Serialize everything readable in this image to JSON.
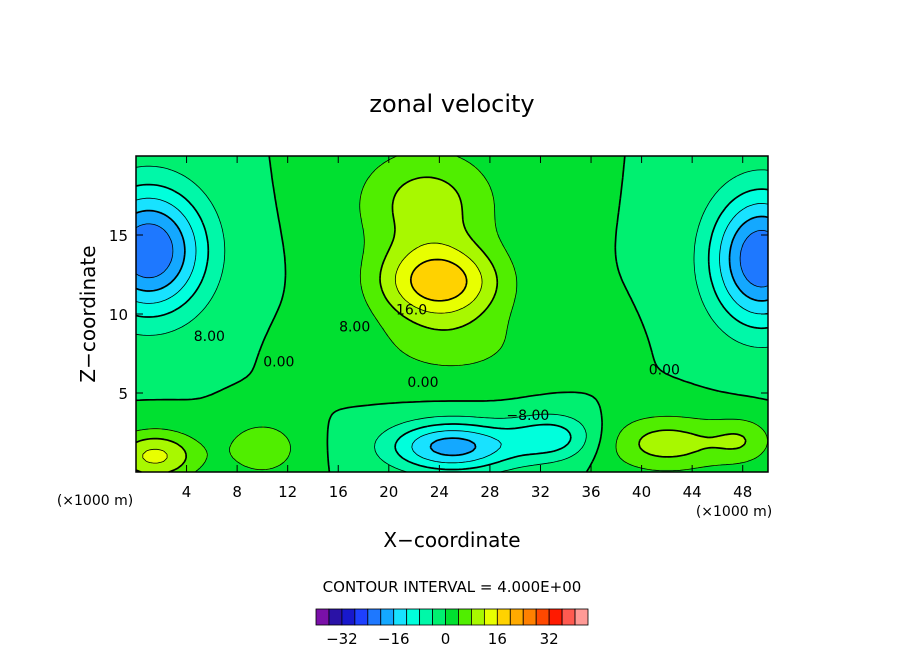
{
  "chart_data": {
    "type": "heatmap",
    "title": "zonal velocity",
    "xlabel": "X−coordinate",
    "ylabel": "Z−coordinate",
    "x_unit_label": "(×1000 m)",
    "z_unit_label": "(×1000 m)",
    "xlim": [
      0,
      50
    ],
    "ylim": [
      0,
      20
    ],
    "x_ticks": [
      4,
      8,
      12,
      16,
      20,
      24,
      28,
      32,
      36,
      40,
      44,
      48
    ],
    "y_ticks": [
      5,
      10,
      15
    ],
    "contour_interval_text": "CONTOUR INTERVAL = 4.000E+00",
    "contour_labels": [
      {
        "text": "16.0",
        "x": 21.8,
        "z": 10.3
      },
      {
        "text": "8.00",
        "x": 17.3,
        "z": 9.2
      },
      {
        "text": "8.00",
        "x": 5.8,
        "z": 8.6
      },
      {
        "text": "0.00",
        "x": 11.3,
        "z": 7.0
      },
      {
        "text": "0.00",
        "x": 22.7,
        "z": 5.7
      },
      {
        "text": "0.00",
        "x": 41.8,
        "z": 6.5
      },
      {
        "text": "−8.00",
        "x": 31.0,
        "z": 3.6
      }
    ],
    "colorbar": {
      "levels": [
        -36,
        -32,
        -28,
        -24,
        -20,
        -16,
        -12,
        -8,
        -4,
        0,
        4,
        8,
        12,
        16,
        20,
        24,
        28,
        32,
        36
      ],
      "colors": [
        "#7a10a8",
        "#2a12a6",
        "#1818cc",
        "#1e40ff",
        "#1e78ff",
        "#14a8ff",
        "#18e2ff",
        "#00ffdc",
        "#00f8a8",
        "#00f070",
        "#00e030",
        "#50ee00",
        "#a8f800",
        "#e8ff00",
        "#ffd200",
        "#ffaa00",
        "#ff8000",
        "#ff4800",
        "#ff1a00",
        "#ff5a50",
        "#ff9a96"
      ],
      "tick_labels": [
        "−32",
        "−16",
        "0",
        "16",
        "32"
      ],
      "tick_values": [
        -32,
        -16,
        0,
        16,
        32
      ]
    },
    "centers": [
      {
        "x": 24,
        "z": 12,
        "amp": 18,
        "sx": 4.8,
        "sz": 2.4
      },
      {
        "x": 23,
        "z": 17,
        "amp": 10,
        "sx": 5.5,
        "sz": 3.5
      },
      {
        "x": 25,
        "z": 8,
        "amp": 5,
        "sx": 7,
        "sz": 2.5
      },
      {
        "x": 1,
        "z": 14,
        "amp": -24,
        "sx": 4.5,
        "sz": 4
      },
      {
        "x": 49.5,
        "z": 13.5,
        "amp": -24,
        "sx": 4,
        "sz": 4.2
      },
      {
        "x": 25,
        "z": 1.6,
        "amp": -18,
        "sx": 5,
        "sz": 1.6
      },
      {
        "x": 33,
        "z": 2.2,
        "amp": -10,
        "sx": 3.5,
        "sz": 1.5
      },
      {
        "x": 1.5,
        "z": 1,
        "amp": 13,
        "sx": 3.5,
        "sz": 1.6
      },
      {
        "x": 10,
        "z": 1.5,
        "amp": 7,
        "sx": 3,
        "sz": 1.8
      },
      {
        "x": 42,
        "z": 1.8,
        "amp": 10,
        "sx": 5,
        "sz": 1.8
      },
      {
        "x": 48,
        "z": 2,
        "amp": 6,
        "sx": 2.5,
        "sz": 1.5
      }
    ]
  }
}
